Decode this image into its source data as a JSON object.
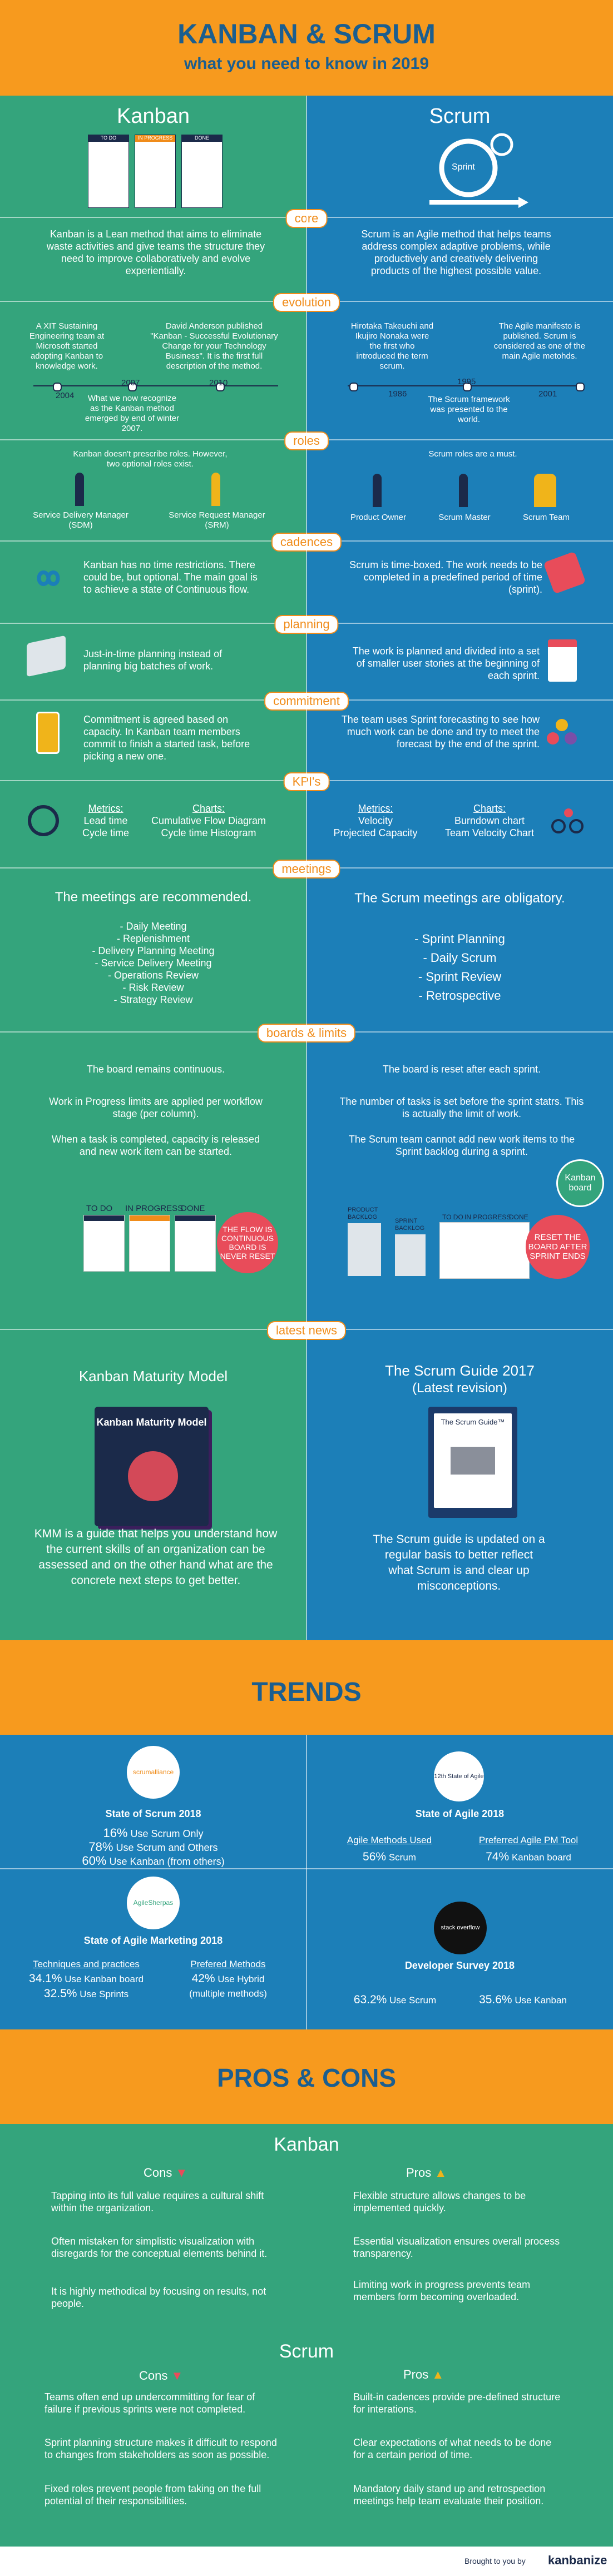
{
  "header": {
    "title": "KANBAN & SCRUM",
    "subtitle": "what you need to know in 2019"
  },
  "columns": {
    "kanban": "Kanban",
    "scrum": "Scrum"
  },
  "hero": {
    "sprint_label": "Sprint",
    "kanban_cols": [
      "TO DO",
      "IN PROGRESS",
      "DONE"
    ]
  },
  "sections": {
    "core": "core",
    "evolution": "evolution",
    "roles": "roles",
    "cadences": "cadences",
    "planning": "planning",
    "commitment": "commitment",
    "kpis": "KPI's",
    "meetings": "meetings",
    "boards": "boards & limits",
    "news": "latest news"
  },
  "core": {
    "kanban": "Kanban is a Lean method that aims to eliminate waste activities and give teams the structure they need to improve collaboratively and evolve experientially.",
    "scrum": "Scrum is an Agile method that helps teams address complex adaptive problems, while productively and creatively delivering products of the highest possible value."
  },
  "evolution": {
    "k1": "A XIT Sustaining Engineering team at Microsoft started adopting Kanban to knowledge work.",
    "k2": "David Anderson published \"Kanban - Successful Evolutionary Change for your Technology Business\". It is the first full description of the method.",
    "k3": "What we now recognize as the Kanban method emerged by end of winter 2007.",
    "k_years": [
      "2004",
      "2007",
      "2010"
    ],
    "s1": "Hirotaka Takeuchi and Ikujiro Nonaka were the first who introduced the term scrum.",
    "s2": "The Agile manifesto is published. Scrum is considered as one of the main Agile metohds.",
    "s3": "The Scrum framework was presented to the world.",
    "s_years": [
      "1986",
      "1995",
      "2001"
    ]
  },
  "roles": {
    "k_intro": "Kanban doesn't prescribe roles. However, two optional roles exist.",
    "k_r1": "Service Delivery Manager (SDM)",
    "k_r2": "Service Request Manager (SRM)",
    "s_intro": "Scrum roles are a must.",
    "s_r1": "Product Owner",
    "s_r2": "Scrum Master",
    "s_r3": "Scrum Team"
  },
  "cadences": {
    "kanban": "Kanban has no time restrictions. There could be, but optional. The main goal is to achieve a state of Continuous flow.",
    "scrum": "Scrum is time-boxed. The work needs to be completed in a predefined period of time (sprint)."
  },
  "planning": {
    "kanban": "Just-in-time planning instead of planning big batches of work.",
    "scrum": "The work is planned and divided into a set of smaller user stories at the beginning of each sprint."
  },
  "commitment": {
    "kanban": "Commitment is agreed based on capacity. In Kanban team members commit to finish a started task, before picking a new one.",
    "scrum": "The team uses Sprint forecasting to see how much work can be done and try to meet the forecast by the end of the sprint."
  },
  "kpis": {
    "k_metrics_h": "Metrics:",
    "k_metrics": "Lead time\nCycle time",
    "k_charts_h": "Charts:",
    "k_charts": "Cumulative Flow Diagram\nCycle time Histogram",
    "s_metrics_h": "Metrics:",
    "s_metrics": "Velocity\nProjected Capacity",
    "s_charts_h": "Charts:",
    "s_charts": "Burndown chart\nTeam Velocity Chart"
  },
  "meetings": {
    "k_title": "The meetings are recommended.",
    "k_list": [
      "- Daily Meeting",
      "- Replenishment",
      "- Delivery Planning Meeting",
      "- Service Delivery Meeting",
      "- Operations Review",
      "- Risk Review",
      "- Strategy Review"
    ],
    "s_title": "The Scrum meetings are obligatory.",
    "s_list": [
      "- Sprint Planning",
      "- Daily Scrum",
      "- Sprint Review",
      "- Retrospective"
    ]
  },
  "boards": {
    "k1": "The board remains continuous.",
    "k2": "Work in Progress limits are applied per workflow stage (per column).",
    "k3": "When a task is completed, capacity is released and new work item can be started.",
    "k_badge": "THE FLOW IS CONTINUOUS BOARD IS NEVER RESET",
    "k_cols": [
      "TO DO",
      "IN PROGRESS",
      "DONE"
    ],
    "s1": "The board is reset after each sprint.",
    "s2": "The number of tasks is set before the sprint statrs. This is actually the limit of work.",
    "s3": "The Scrum team cannot add new work items to the Sprint backlog during a sprint.",
    "s_backlog": "PRODUCT BACKLOG",
    "s_sprint": "SPRINT BACKLOG",
    "s_cols": [
      "TO DO",
      "IN PROGRESS",
      "DONE"
    ],
    "s_badge": "RESET THE BOARD AFTER SPRINT ENDS",
    "s_kanban_board": "Kanban board"
  },
  "news": {
    "k_title": "Kanban Maturity Model",
    "k_book": "Kanban Maturity Model",
    "k_text": "KMM is a guide that helps you understand how the current skills of an organization can be assessed and on the other hand what are the concrete next steps to get better.",
    "s_title": "The Scrum Guide 2017",
    "s_sub": "(Latest revision)",
    "s_book": "The Scrum Guide™",
    "s_text": "The Scrum guide is updated on a regular basis to better reflect what Scrum is and clear up misconceptions."
  },
  "trends": {
    "title": "TRENDS",
    "sos": {
      "logo": "scrumalliance",
      "title": "State of Scrum 2018",
      "l1p": "16%",
      "l1": "Use Scrum Only",
      "l2p": "78%",
      "l2": "Use Scrum and Others",
      "l3p": "60%",
      "l3": "Use Kanban (from others)"
    },
    "soa": {
      "logo": "12th State of Agile",
      "title": "State of Agile 2018",
      "h1": "Agile Methods Used",
      "v1p": "56%",
      "v1": "Scrum",
      "h2": "Preferred Agile PM Tool",
      "v2p": "74%",
      "v2": "Kanban board"
    },
    "sam": {
      "logo": "AgileSherpas",
      "title": "State of Agile Marketing 2018",
      "h1": "Techniques and practices",
      "a1p": "34.1%",
      "a1": "Use Kanban board",
      "a2p": "32.5%",
      "a2": "Use Sprints",
      "h2": "Prefered Methods",
      "b1p": "42%",
      "b1": "Use Hybrid",
      "b2": "(multiple methods)"
    },
    "ds": {
      "logo": "stack overflow",
      "title": "Developer Survey 2018",
      "v1p": "63.2%",
      "v1": "Use Scrum",
      "v2p": "35.6%",
      "v2": "Use Kanban"
    }
  },
  "proscons": {
    "title": "PROS & CONS",
    "kanban": "Kanban",
    "scrum": "Scrum",
    "cons": "Cons",
    "pros": "Pros",
    "k_cons": [
      "Tapping into its full value requires a cultural shift within the organization.",
      "Often mistaken for simplistic visualization with disregards for the conceptual elements behind it.",
      "It is highly methodical by focusing on results, not people."
    ],
    "k_pros": [
      "Flexible structure allows changes to be implemented quickly.",
      "Essential visualization ensures overall process transparency.",
      "Limiting work in progress prevents team members form becoming overloaded."
    ],
    "s_cons": [
      "Teams often end up undercommitting for fear of failure if previous sprints were not completed.",
      "Sprint planning structure makes it difficult to respond to changes from stakeholders as soon as possible.",
      "Fixed roles prevent people from taking on the full potential of their responsibilities."
    ],
    "s_pros": [
      "Built-in cadences provide pre-defined structure for interations.",
      "Clear expectations of what needs to be done for a certain period of time.",
      "Mandatory daily stand up and retrospection meetings help team evaluate their position."
    ]
  },
  "footer": {
    "brought": "Brought to you by",
    "brand": "kanbanize"
  },
  "colors": {
    "orange": "#f79a1e",
    "green": "#34a47c",
    "blue": "#1c7fb8",
    "navy": "#1b2a4a",
    "red": "#e84c5a"
  }
}
